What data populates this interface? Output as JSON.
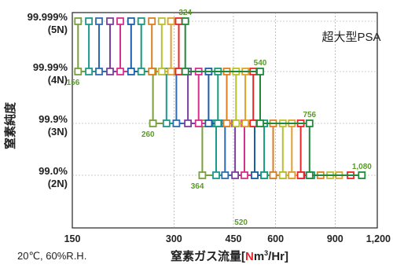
{
  "chart_data": {
    "type": "line",
    "title": "超大型PSA",
    "xlabel": {
      "prefix": "窒素ガス流量[",
      "highlight": "N",
      "highlight_color": "#e8262a",
      "middle": "m",
      "superscript": "3",
      "suffix": "/Hr]"
    },
    "ylabel": "窒素純度",
    "condition_note": "20℃, 60%R.H.",
    "x_scale": "log",
    "xlim": [
      150,
      1200
    ],
    "x_ticks": [
      {
        "value": 150,
        "label": "150"
      },
      {
        "value": 300,
        "label": "300"
      },
      {
        "value": 450,
        "label": "450"
      },
      {
        "value": 600,
        "label": "600"
      },
      {
        "value": 900,
        "label": "900"
      },
      {
        "value": 1200,
        "label": "1,200"
      }
    ],
    "y_levels": [
      {
        "line1": "99.999%",
        "line2": "(5N)"
      },
      {
        "line1": "99.99%",
        "line2": "(4N)"
      },
      {
        "line1": "99.9%",
        "line2": "(3N)"
      },
      {
        "line1": "99.0%",
        "line2": "(2N)"
      }
    ],
    "grid": true,
    "series_colors": [
      "#7aa03a",
      "#1a9a8a",
      "#2d6cb3",
      "#7b3fa0",
      "#d6308c",
      "#1a5fa8",
      "#159a7a",
      "#e07e1e",
      "#b7c12a",
      "#e0a02a",
      "#e8262a",
      "#1e8a3a"
    ],
    "label_color": "#5a9a2a",
    "series": [
      {
        "points": [
          [
            156,
            0
          ],
          [
            156,
            1
          ],
          [
            260,
            1
          ],
          [
            260,
            2
          ],
          [
            364,
            2
          ],
          [
            364,
            3
          ],
          [
            520,
            3
          ]
        ]
      },
      {
        "points": [
          [
            168,
            0
          ],
          [
            168,
            1
          ],
          [
            285,
            1
          ],
          [
            285,
            2
          ],
          [
            400,
            2
          ],
          [
            400,
            3
          ],
          [
            555,
            3
          ]
        ]
      },
      {
        "points": [
          [
            180,
            0
          ],
          [
            180,
            1
          ],
          [
            305,
            1
          ],
          [
            305,
            2
          ],
          [
            425,
            2
          ],
          [
            425,
            3
          ],
          [
            590,
            3
          ]
        ]
      },
      {
        "points": [
          [
            194,
            0
          ],
          [
            194,
            1
          ],
          [
            330,
            1
          ],
          [
            330,
            2
          ],
          [
            455,
            2
          ],
          [
            455,
            3
          ],
          [
            630,
            3
          ]
        ]
      },
      {
        "points": [
          [
            208,
            0
          ],
          [
            208,
            1
          ],
          [
            355,
            1
          ],
          [
            355,
            2
          ],
          [
            485,
            2
          ],
          [
            485,
            3
          ],
          [
            670,
            3
          ]
        ]
      },
      {
        "points": [
          [
            224,
            0
          ],
          [
            224,
            1
          ],
          [
            380,
            1
          ],
          [
            380,
            2
          ],
          [
            520,
            2
          ],
          [
            520,
            3
          ],
          [
            715,
            3
          ]
        ]
      },
      {
        "points": [
          [
            240,
            0
          ],
          [
            240,
            1
          ],
          [
            405,
            1
          ],
          [
            405,
            2
          ],
          [
            555,
            2
          ],
          [
            555,
            3
          ],
          [
            765,
            3
          ]
        ]
      },
      {
        "points": [
          [
            258,
            0
          ],
          [
            258,
            1
          ],
          [
            430,
            1
          ],
          [
            430,
            2
          ],
          [
            590,
            2
          ],
          [
            590,
            3
          ],
          [
            815,
            3
          ]
        ]
      },
      {
        "points": [
          [
            276,
            0
          ],
          [
            276,
            1
          ],
          [
            458,
            1
          ],
          [
            458,
            2
          ],
          [
            630,
            2
          ],
          [
            630,
            3
          ],
          [
            870,
            3
          ]
        ]
      },
      {
        "points": [
          [
            294,
            0
          ],
          [
            294,
            1
          ],
          [
            488,
            1
          ],
          [
            488,
            2
          ],
          [
            670,
            2
          ],
          [
            670,
            3
          ],
          [
            925,
            3
          ]
        ]
      },
      {
        "points": [
          [
            310,
            0
          ],
          [
            310,
            1
          ],
          [
            515,
            1
          ],
          [
            515,
            2
          ],
          [
            712,
            2
          ],
          [
            712,
            3
          ],
          [
            1000,
            3
          ]
        ]
      },
      {
        "points": [
          [
            324,
            0
          ],
          [
            324,
            1
          ],
          [
            540,
            1
          ],
          [
            540,
            2
          ],
          [
            756,
            2
          ],
          [
            756,
            3
          ],
          [
            1080,
            3
          ]
        ]
      }
    ],
    "data_labels": [
      {
        "text": "324",
        "x": 324,
        "level": 0,
        "pos": "above"
      },
      {
        "text": "156",
        "x": 156,
        "level": 1,
        "pos": "below"
      },
      {
        "text": "540",
        "x": 540,
        "level": 1,
        "pos": "above"
      },
      {
        "text": "260",
        "x": 260,
        "level": 2,
        "pos": "below"
      },
      {
        "text": "756",
        "x": 756,
        "level": 2,
        "pos": "above"
      },
      {
        "text": "364",
        "x": 364,
        "level": 3,
        "pos": "below"
      },
      {
        "text": "1,080",
        "x": 1080,
        "level": 3,
        "pos": "above"
      },
      {
        "text": "520",
        "x": 520,
        "level": 4,
        "pos": "left"
      }
    ]
  }
}
